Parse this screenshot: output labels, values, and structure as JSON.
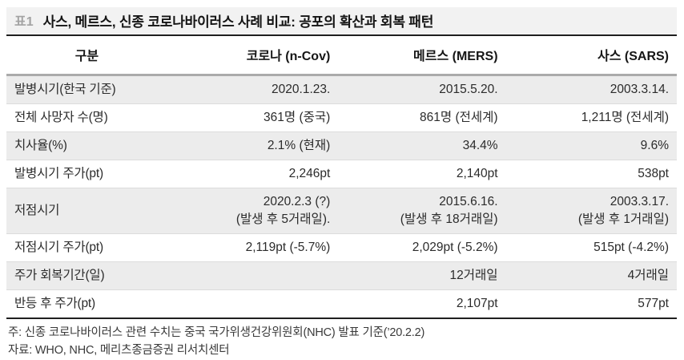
{
  "table": {
    "tag": "표1",
    "title": "사스, 메르스, 신종 코로나바이러스 사례 비교: 공포의 확산과 회복 패턴",
    "columns": [
      "구분",
      "코로나 (n-Cov)",
      "메르스 (MERS)",
      "사스 (SARS)"
    ],
    "rows": [
      [
        "발병시기(한국 기준)",
        "2020.1.23.",
        "2015.5.20.",
        "2003.3.14."
      ],
      [
        "전체 사망자 수(명)",
        "361명 (중국)",
        "861명 (전세계)",
        "1,211명 (전세계)"
      ],
      [
        "치사율(%)",
        "2.1% (현재)",
        "34.4%",
        "9.6%"
      ],
      [
        "발병시기 주가(pt)",
        "2,246pt",
        "2,140pt",
        "538pt"
      ],
      [
        "저점시기",
        "2020.2.3 (?)\n(발생 후  5거래일).",
        "2015.6.16.\n(발생 후 18거래일)",
        "2003.3.17.\n(발생 후 1거래일)"
      ],
      [
        "저점시기 주가(pt)",
        "2,119pt (-5.7%)",
        "2,029pt (-5.2%)",
        "515pt (-4.2%)"
      ],
      [
        "주가 회복기간(일)",
        "",
        "12거래일",
        "4거래일"
      ],
      [
        "반등 후 주가(pt)",
        "",
        "2,107pt",
        "577pt"
      ]
    ],
    "notes": [
      "주: 신종 코로나바이러스 관련 수치는 중국 국가위생건강위원회(NHC) 발표 기준(’20.2.2)",
      "자료: WHO, NHC, 메리츠종금증권 리서치센터"
    ],
    "colors": {
      "title_bar_bg": "#f2f2f2",
      "stripe_row_bg": "#ececec",
      "heavy_rule": "#1f1f1f",
      "header_rule": "#ababab",
      "tag_gray": "#a3a3a3"
    }
  }
}
